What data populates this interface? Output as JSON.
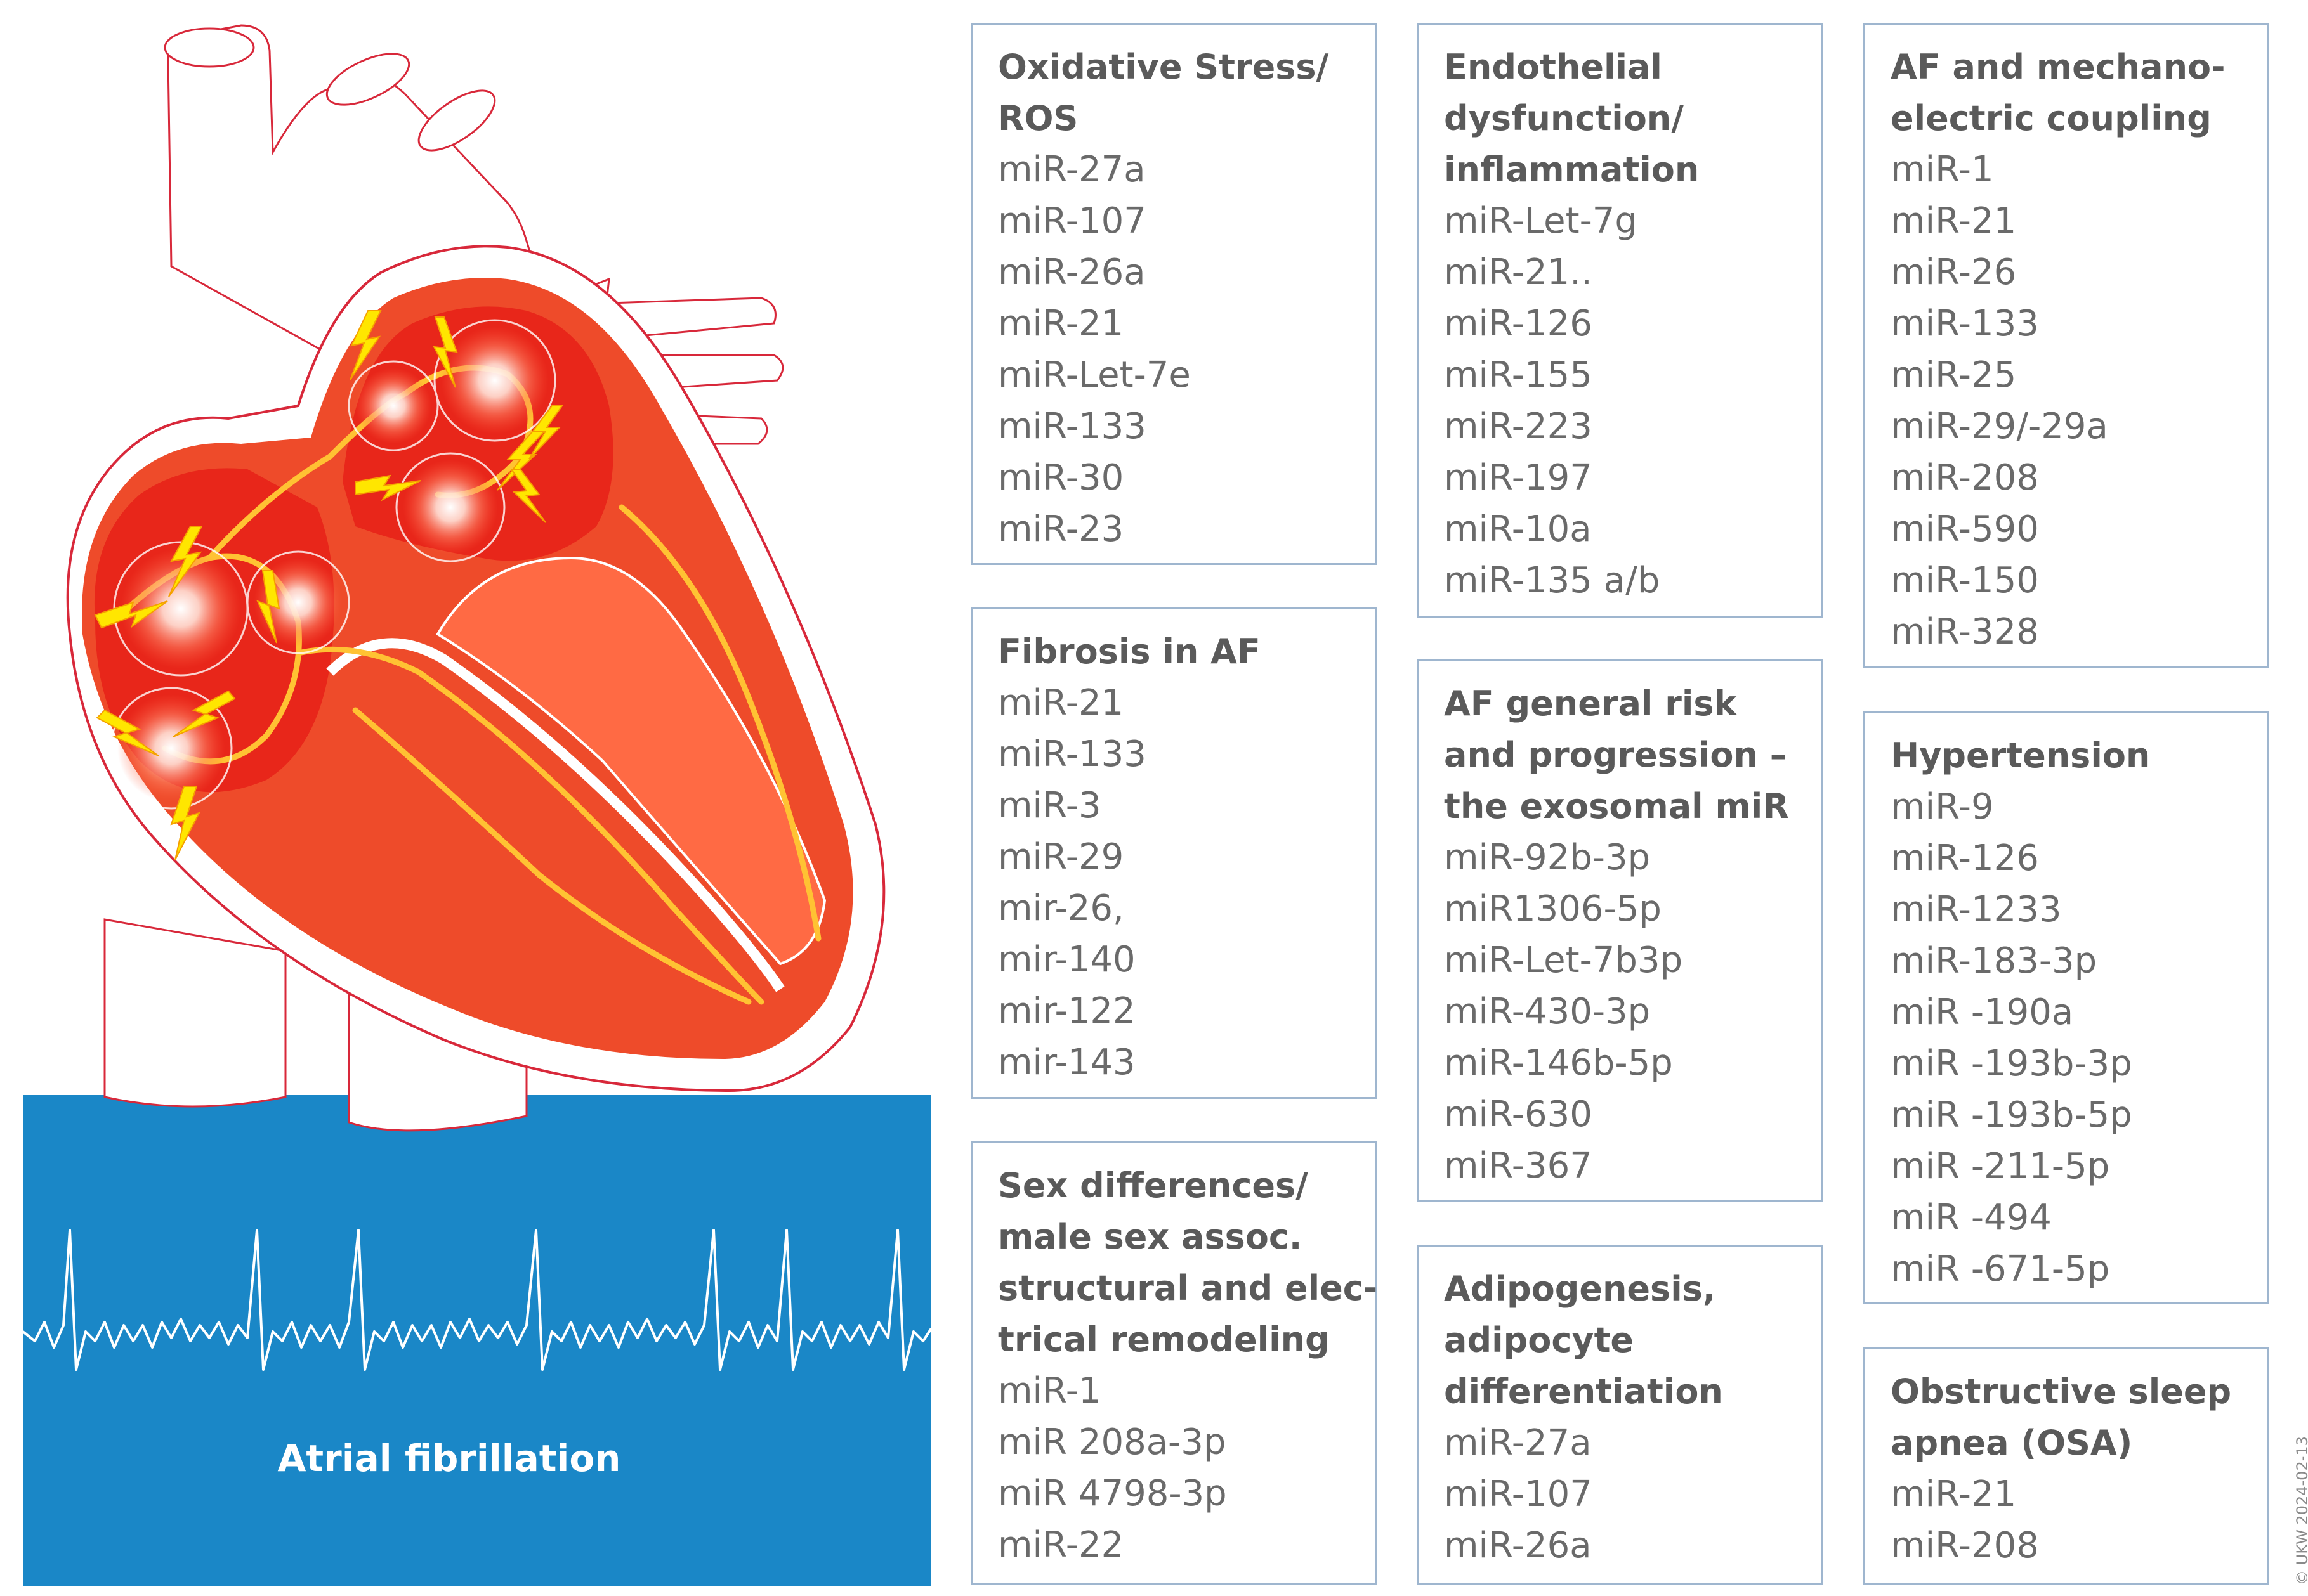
{
  "illustration": {
    "caption": "Atrial fibrillation",
    "colors": {
      "panel": "#1a87c7",
      "muscle": "#ee4b2a",
      "chamber": "#e8261a",
      "outline": "#d8283a",
      "conduction": "#ffc233",
      "spark": "#ffe600"
    }
  },
  "boxes": [
    {
      "title": [
        "Oxidative Stress/",
        "ROS"
      ],
      "items": [
        "miR-27a",
        "miR-107",
        "miR-26a",
        "miR-21",
        "miR-Let-7e",
        "miR-133",
        "miR-30",
        "miR-23"
      ]
    },
    {
      "title": [
        "Fibrosis in AF"
      ],
      "items": [
        "miR-21",
        "miR-133",
        "miR-3",
        "miR-29",
        "mir-26,",
        "mir-140",
        "mir-122",
        "mir-143"
      ]
    },
    {
      "title": [
        "Sex differences/",
        "male sex assoc.",
        "structural and elec-",
        "trical remodeling"
      ],
      "items": [
        "miR-1",
        "miR 208a-3p",
        "miR 4798-3p",
        "miR-22"
      ]
    },
    {
      "title": [
        "Endothelial",
        "dysfunction/",
        "inflammation"
      ],
      "items": [
        "miR-Let-7g",
        "miR-21..",
        "miR-126",
        "miR-155",
        "miR-223",
        "miR-197",
        "miR-10a",
        "miR-135 a/b"
      ]
    },
    {
      "title": [
        "AF general risk",
        "and progression –",
        "the exosomal miR"
      ],
      "items": [
        "miR-92b-3p",
        "miR1306-5p",
        "miR-Let-7b3p",
        "miR-430-3p",
        "miR-146b-5p",
        "miR-630",
        "miR-367"
      ]
    },
    {
      "title": [
        "Adipogenesis,",
        "adipocyte",
        "differentiation"
      ],
      "items": [
        "miR-27a",
        "miR-107",
        "miR-26a"
      ]
    },
    {
      "title": [
        "AF and mechano-",
        "electric coupling"
      ],
      "items": [
        "miR-1",
        "miR-21",
        "miR-26",
        "miR-133",
        "miR-25",
        "miR-29/-29a",
        "miR-208",
        "miR-590",
        "miR-150",
        "miR-328"
      ]
    },
    {
      "title": [
        "Hypertension"
      ],
      "items": [
        "miR-9",
        "miR-126",
        "miR-1233",
        "miR-183-3p",
        "miR -190a",
        "miR -193b-3p",
        "miR -193b-5p",
        "miR -211-5p",
        "miR -494",
        "miR -671-5p"
      ]
    },
    {
      "title": [
        "Obstructive sleep",
        "apnea (OSA)"
      ],
      "items": [
        "miR-21",
        "miR-208"
      ]
    }
  ],
  "copyright": "© UKW 2024-02-13"
}
